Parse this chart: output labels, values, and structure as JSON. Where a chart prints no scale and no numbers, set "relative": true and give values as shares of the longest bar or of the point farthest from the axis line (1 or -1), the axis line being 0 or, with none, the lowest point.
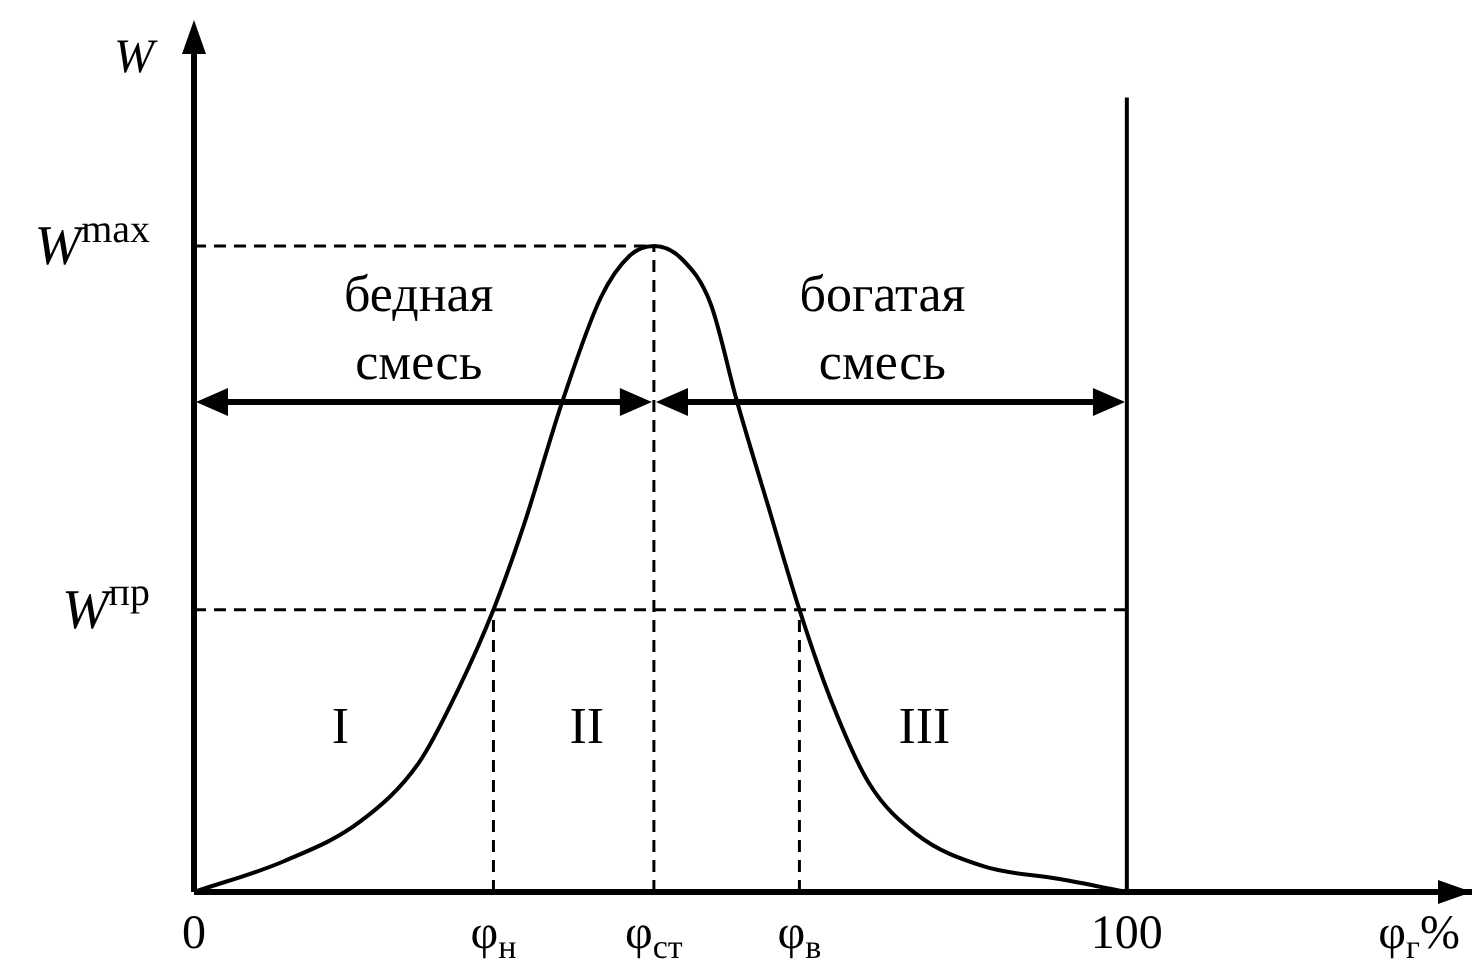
{
  "chart_data": {
    "type": "line",
    "relative": true,
    "xlabel": "φ$_{г}$%",
    "ylabel": "W",
    "x": [
      0,
      9.7,
      17.9,
      24.1,
      28.2,
      32.1,
      35.4,
      39.5,
      43.6,
      46.7,
      49.3,
      52.3,
      55.4,
      58.2,
      61.5,
      64.9,
      68.2,
      72.3,
      77.4,
      84.6,
      92.8,
      100
    ],
    "series": [
      {
        "color": "#000000",
        "values": [
          0,
          0.048,
          0.11,
          0.2,
          0.31,
          0.437,
          0.57,
          0.76,
          0.92,
          0.985,
          1,
          0.98,
          0.91,
          0.76,
          0.6,
          0.437,
          0.3,
          0.17,
          0.09,
          0.04,
          0.02,
          0
        ]
      }
    ],
    "xlim": [
      0,
      137
    ],
    "xticks": [
      0,
      {
        "value": 32.1,
        "label": "φ$_{н}$"
      },
      {
        "value": 49.3,
        "label": "φ$_{ст}$"
      },
      {
        "value": 64.9,
        "label": "φ$_{в}$"
      },
      100
    ],
    "ref_lines": [
      {
        "axis": "y",
        "value": 1,
        "label": "W$^{max}$",
        "line_style": "dashed"
      },
      {
        "axis": "y",
        "value": 0.437,
        "label": "W$^{пр}$",
        "line_style": "dashed"
      },
      {
        "axis": "x",
        "value": 32.1,
        "line_style": "dashed"
      },
      {
        "axis": "x",
        "value": 49.3,
        "line_style": "dashed"
      },
      {
        "axis": "x",
        "value": 64.9,
        "line_style": "dashed"
      },
      {
        "axis": "x",
        "value": 100,
        "line_style": "solid"
      }
    ],
    "annotations": [
      "бедная смесь",
      "богатая смесь",
      "I",
      "II",
      "III"
    ],
    "grid": false,
    "legend": false,
    "marker": "none",
    "line_style": "solid"
  }
}
